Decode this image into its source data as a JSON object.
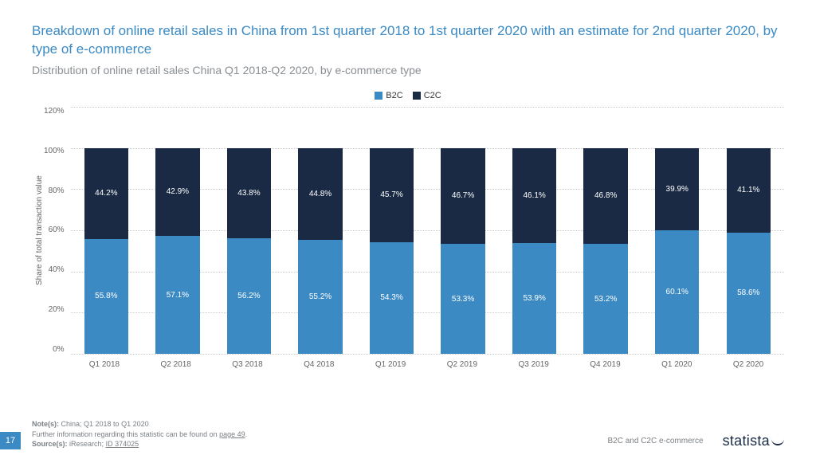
{
  "title": "Breakdown of online retail sales in China from 1st quarter 2018 to 1st quarter 2020 with an estimate for 2nd quarter 2020, by type of e-commerce",
  "subtitle": "Distribution of online retail sales China Q1 2018-Q2 2020, by e-commerce type",
  "chart": {
    "type": "stacked-bar",
    "legend": [
      {
        "label": "B2C",
        "color": "#3b8ac4"
      },
      {
        "label": "C2C",
        "color": "#1a2a44"
      }
    ],
    "ylabel": "Share of total transaction value",
    "ylim": [
      0,
      120
    ],
    "ytick_step": 20,
    "yticks": [
      "0%",
      "20%",
      "40%",
      "60%",
      "80%",
      "100%",
      "120%"
    ],
    "categories": [
      "Q1 2018",
      "Q2 2018",
      "Q3 2018",
      "Q4 2018",
      "Q1 2019",
      "Q2 2019",
      "Q3 2019",
      "Q4 2019",
      "Q1 2020",
      "Q2 2020"
    ],
    "series": {
      "b2c": [
        55.8,
        57.1,
        56.2,
        55.2,
        54.3,
        53.3,
        53.9,
        53.2,
        60.1,
        58.6
      ],
      "c2c": [
        44.2,
        42.9,
        43.8,
        44.8,
        45.7,
        46.7,
        46.1,
        46.8,
        39.9,
        41.1
      ]
    },
    "colors": {
      "b2c": "#3b8ac4",
      "c2c": "#1a2a44"
    },
    "grid_color": "#cccccc",
    "background_color": "#ffffff",
    "label_fontsize": 10,
    "value_label_color": "#ffffff"
  },
  "footer": {
    "page_number": "17",
    "note_label": "Note(s):",
    "note_text": "China; Q1 2018 to Q1 2020",
    "further_prefix": "Further information regarding this statistic can be found on ",
    "further_link": "page 49",
    "further_suffix": ".",
    "source_label": "Source(s):",
    "source_text_1": "iResearch; ",
    "source_link": "ID 374025",
    "description": "B2C and C2C e-commerce",
    "brand": "statista"
  }
}
